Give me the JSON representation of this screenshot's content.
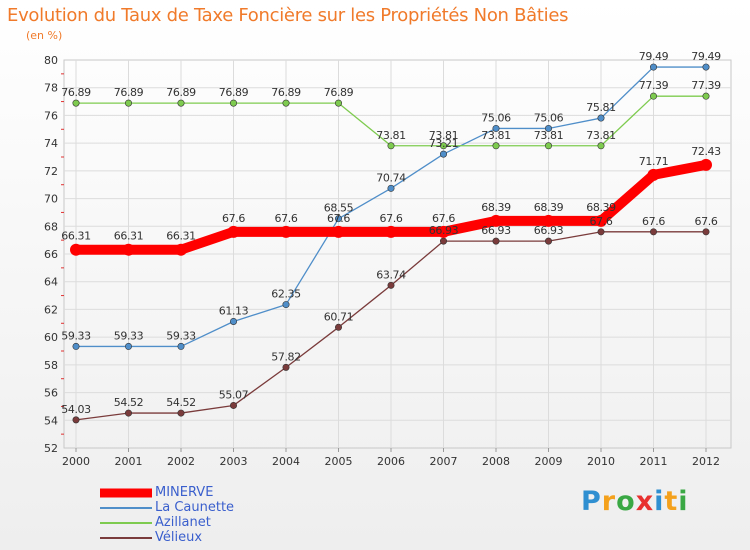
{
  "chart_data": {
    "type": "line",
    "title": "Evolution du Taux de Taxe Foncière sur les Propriétés Non Bâties",
    "subtitle": "(en %)",
    "categories": [
      "2000",
      "2001",
      "2002",
      "2003",
      "2004",
      "2005",
      "2006",
      "2007",
      "2008",
      "2009",
      "2010",
      "2011",
      "2012"
    ],
    "ylim": [
      52,
      80
    ],
    "yticks": [
      52,
      54,
      56,
      58,
      60,
      62,
      64,
      66,
      68,
      70,
      72,
      74,
      76,
      78,
      80
    ],
    "grid": true,
    "legend": "bottom-left",
    "series": [
      {
        "name": "MINERVE",
        "color": "#ff0000",
        "emphasis": "thick",
        "values": [
          66.31,
          66.31,
          66.31,
          67.6,
          67.6,
          67.6,
          67.6,
          67.6,
          68.39,
          68.39,
          68.39,
          71.71,
          72.43
        ],
        "labels": [
          "66.31",
          "66.31",
          "66.31",
          "67.6",
          "67.6",
          "67.6",
          "67.6",
          "67.6",
          "68.39",
          "68.39",
          "68.39",
          "71.71",
          "72.43"
        ]
      },
      {
        "name": "La Caunette",
        "color": "#4f8ec9",
        "values": [
          59.33,
          59.33,
          59.33,
          61.13,
          62.35,
          68.55,
          70.74,
          73.21,
          75.06,
          75.06,
          75.81,
          79.49,
          79.49
        ],
        "labels": [
          "59.33",
          "59.33",
          "59.33",
          "61.13",
          "62.35",
          "68.55",
          "70.74",
          "73.21",
          "75.06",
          "75.06",
          "75.81",
          "79.49",
          "79.49"
        ]
      },
      {
        "name": "Azillanet",
        "color": "#7ecb4f",
        "values": [
          76.89,
          76.89,
          76.89,
          76.89,
          76.89,
          76.89,
          73.81,
          73.81,
          73.81,
          73.81,
          73.81,
          77.39,
          77.39
        ],
        "labels": [
          "76.89",
          "76.89",
          "76.89",
          "76.89",
          "76.89",
          "76.89",
          "73.81",
          "73.81",
          "73.81",
          "73.81",
          "73.81",
          "77.39",
          "77.39"
        ]
      },
      {
        "name": "Vélieux",
        "color": "#7a3b3b",
        "values": [
          54.03,
          54.52,
          54.52,
          55.07,
          57.82,
          60.71,
          63.74,
          66.93,
          66.93,
          66.93,
          67.6,
          67.6,
          67.6
        ],
        "labels": [
          "54.03",
          "54.52",
          "54.52",
          "55.07",
          "57.82",
          "60.71",
          "63.74",
          "66.93",
          "66.93",
          "66.93",
          "67.6",
          "67.6",
          "67.6"
        ]
      }
    ]
  },
  "logo": {
    "letters": [
      {
        "ch": "P",
        "color": "#2f8fd1"
      },
      {
        "ch": "r",
        "color": "#f4a11c"
      },
      {
        "ch": "o",
        "color": "#3aa844"
      },
      {
        "ch": "x",
        "color": "#e8312f"
      },
      {
        "ch": "i",
        "color": "#2f8fd1"
      },
      {
        "ch": "t",
        "color": "#f4a11c"
      },
      {
        "ch": "i",
        "color": "#3aa844"
      }
    ]
  }
}
